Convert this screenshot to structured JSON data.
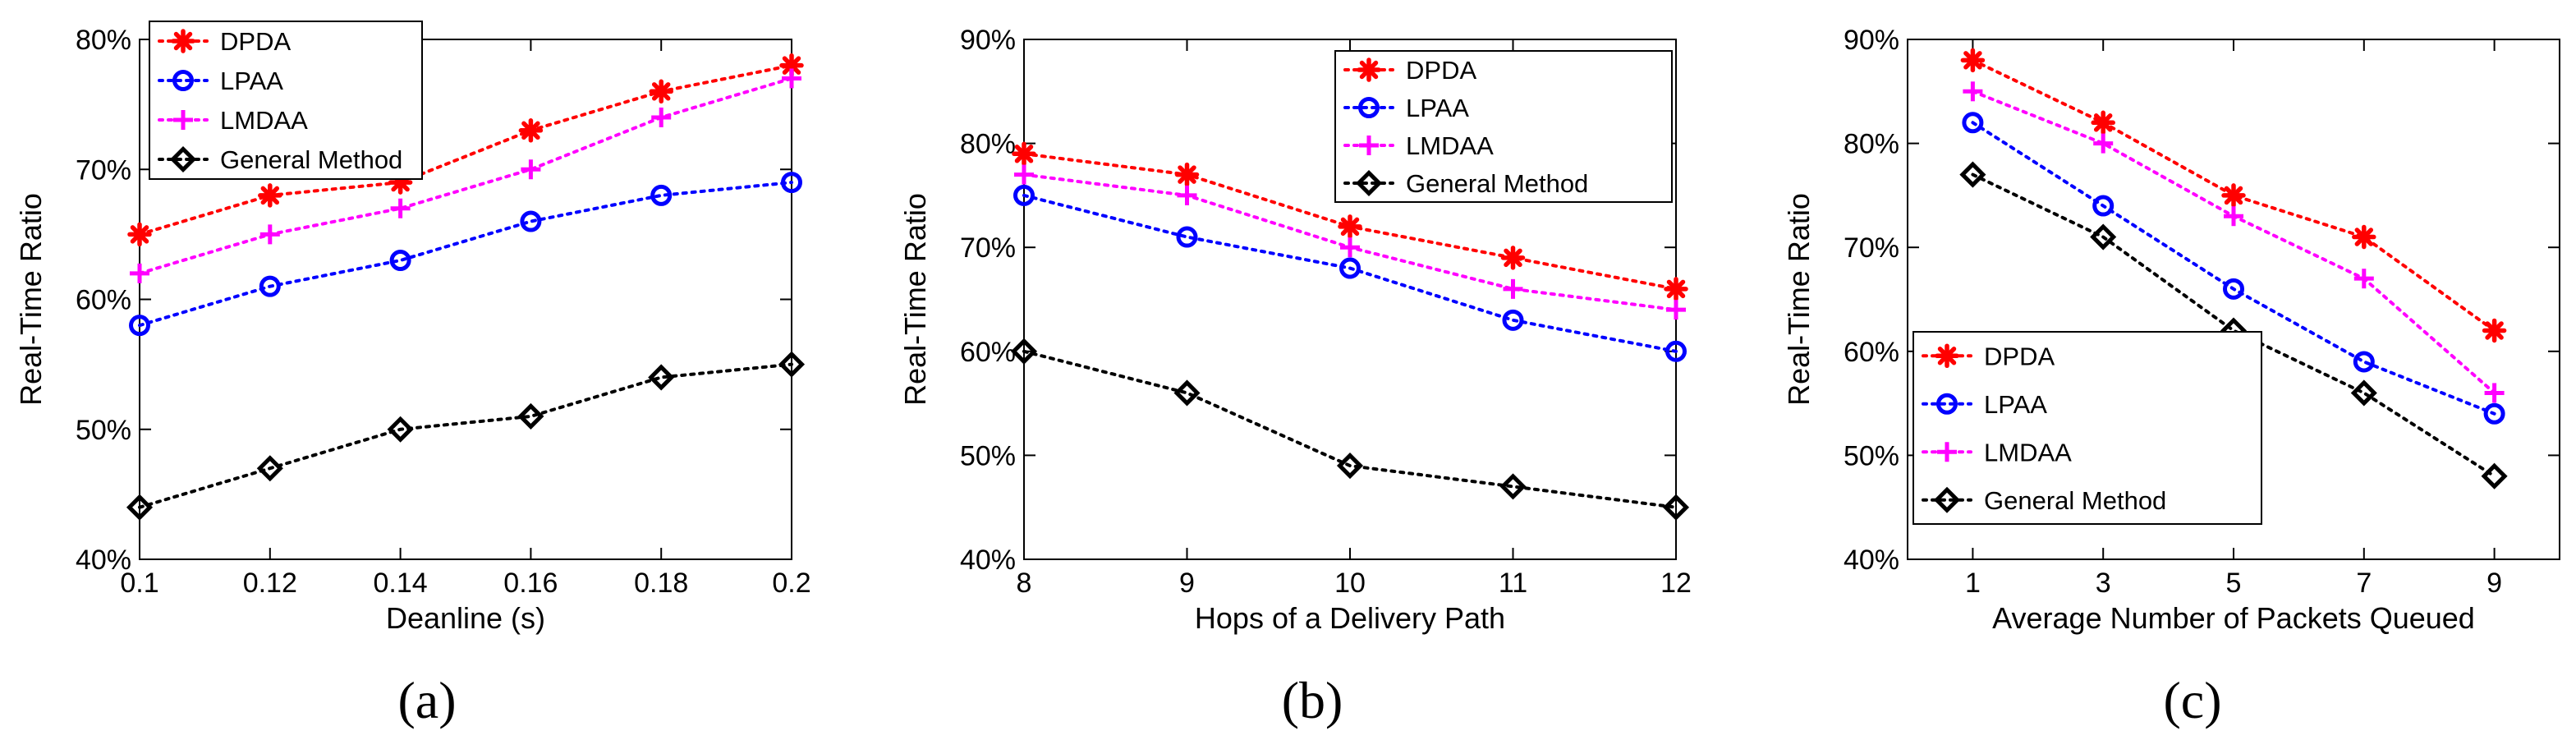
{
  "colors": {
    "DPDA": "#ff0000",
    "LPAA": "#0000ff",
    "LMDAA": "#ff00ff",
    "General Method": "#000000"
  },
  "chart_data": [
    {
      "type": "line",
      "panel": "a",
      "caption": "(a)",
      "xlabel": "Deanline (s)",
      "ylabel": "Real-Time Ratio",
      "x": [
        0.1,
        0.12,
        0.14,
        0.16,
        0.18,
        0.2
      ],
      "xtick_labels": [
        "0.1",
        "0.12",
        "0.14",
        "0.16",
        "0.18",
        "0.2"
      ],
      "xlim": [
        0.1,
        0.2
      ],
      "ylim": [
        40,
        80
      ],
      "yticks": [
        40,
        50,
        60,
        70,
        80
      ],
      "ytick_labels": [
        "40%",
        "50%",
        "60%",
        "70%",
        "80%"
      ],
      "legend_position": "top-left",
      "series": [
        {
          "name": "DPDA",
          "marker": "asterisk",
          "values": [
            65,
            68,
            69,
            73,
            76,
            78
          ]
        },
        {
          "name": "LPAA",
          "marker": "circle",
          "values": [
            58,
            61,
            63,
            66,
            68,
            69
          ]
        },
        {
          "name": "LMDAA",
          "marker": "plus",
          "values": [
            62,
            65,
            67,
            70,
            74,
            77
          ]
        },
        {
          "name": "General Method",
          "marker": "diamond",
          "values": [
            44,
            47,
            50,
            51,
            54,
            55
          ]
        }
      ]
    },
    {
      "type": "line",
      "panel": "b",
      "caption": "(b)",
      "xlabel": "Hops of a Delivery Path",
      "ylabel": "Real-Time Ratio",
      "x": [
        8,
        9,
        10,
        11,
        12
      ],
      "xtick_labels": [
        "8",
        "9",
        "10",
        "11",
        "12"
      ],
      "xlim": [
        8,
        12
      ],
      "ylim": [
        40,
        90
      ],
      "yticks": [
        40,
        50,
        60,
        70,
        80,
        90
      ],
      "ytick_labels": [
        "40%",
        "50%",
        "60%",
        "70%",
        "80%",
        "90%"
      ],
      "legend_position": "top-right",
      "series": [
        {
          "name": "DPDA",
          "marker": "asterisk",
          "values": [
            79,
            77,
            72,
            69,
            66
          ]
        },
        {
          "name": "LPAA",
          "marker": "circle",
          "values": [
            75,
            71,
            68,
            63,
            60
          ]
        },
        {
          "name": "LMDAA",
          "marker": "plus",
          "values": [
            77,
            75,
            70,
            66,
            64
          ]
        },
        {
          "name": "General Method",
          "marker": "diamond",
          "values": [
            60,
            56,
            49,
            47,
            45
          ]
        }
      ]
    },
    {
      "type": "line",
      "panel": "c",
      "caption": "(c)",
      "xlabel": "Average Number of Packets Queued",
      "ylabel": "Real-Time Ratio",
      "x": [
        1,
        3,
        5,
        7,
        9
      ],
      "xtick_labels": [
        "1",
        "3",
        "5",
        "7",
        "9"
      ],
      "xlim": [
        0,
        10
      ],
      "ylim": [
        40,
        90
      ],
      "yticks": [
        40,
        50,
        60,
        70,
        80,
        90
      ],
      "ytick_labels": [
        "40%",
        "50%",
        "60%",
        "70%",
        "80%",
        "90%"
      ],
      "legend_position": "bottom-left",
      "series": [
        {
          "name": "DPDA",
          "marker": "asterisk",
          "values": [
            88,
            82,
            75,
            71,
            62
          ]
        },
        {
          "name": "LPAA",
          "marker": "circle",
          "values": [
            82,
            74,
            66,
            59,
            54
          ]
        },
        {
          "name": "LMDAA",
          "marker": "plus",
          "values": [
            85,
            80,
            73,
            67,
            56
          ]
        },
        {
          "name": "General Method",
          "marker": "diamond",
          "values": [
            77,
            71,
            62,
            56,
            48
          ]
        }
      ]
    }
  ]
}
